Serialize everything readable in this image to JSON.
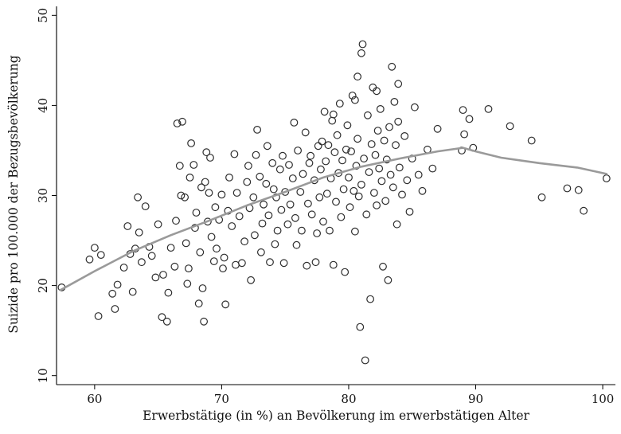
{
  "chart_data": {
    "type": "scatter",
    "title": "",
    "xlabel": "Erwerbstätige (in %) an Bevölkerung im erwerbstätigen Alter",
    "ylabel": "Suizide pro 100.000 der Bezugsbevölkerung",
    "xlim": [
      57,
      101
    ],
    "ylim": [
      9,
      51
    ],
    "x_ticks": [
      "60",
      "70",
      "80",
      "90",
      "100"
    ],
    "y_ticks": [
      "10",
      "20",
      "30",
      "40",
      "50"
    ],
    "x_tick_values": [
      60,
      70,
      80,
      90,
      100
    ],
    "y_tick_values": [
      10,
      20,
      30,
      40,
      50
    ],
    "grid": false,
    "marker": "hollow-circle",
    "colors": {
      "points": "#2d2d2d",
      "smooth_line": "#9a9a9a",
      "axes": "#000000"
    },
    "series": [
      {
        "type": "scatter",
        "points": [
          [
            57.4,
            19.8
          ],
          [
            59.6,
            22.9
          ],
          [
            60.0,
            24.2
          ],
          [
            60.3,
            16.6
          ],
          [
            60.5,
            23.4
          ],
          [
            61.4,
            19.1
          ],
          [
            61.6,
            17.4
          ],
          [
            61.8,
            20.1
          ],
          [
            62.3,
            22.0
          ],
          [
            62.6,
            26.6
          ],
          [
            62.8,
            23.5
          ],
          [
            63.0,
            19.3
          ],
          [
            63.2,
            24.1
          ],
          [
            63.4,
            29.8
          ],
          [
            63.5,
            25.9
          ],
          [
            63.7,
            22.6
          ],
          [
            64.0,
            28.8
          ],
          [
            64.3,
            24.3
          ],
          [
            64.5,
            23.3
          ],
          [
            64.8,
            20.9
          ],
          [
            65.0,
            26.8
          ],
          [
            65.3,
            16.5
          ],
          [
            65.4,
            21.2
          ],
          [
            65.7,
            16.0
          ],
          [
            65.8,
            19.2
          ],
          [
            66.0,
            24.2
          ],
          [
            66.3,
            22.1
          ],
          [
            66.4,
            27.2
          ],
          [
            66.5,
            38.0
          ],
          [
            66.7,
            33.3
          ],
          [
            66.8,
            30.0
          ],
          [
            66.9,
            38.2
          ],
          [
            67.1,
            29.8
          ],
          [
            67.2,
            24.7
          ],
          [
            67.3,
            20.2
          ],
          [
            67.4,
            21.9
          ],
          [
            67.5,
            32.0
          ],
          [
            67.6,
            35.8
          ],
          [
            67.8,
            33.4
          ],
          [
            67.9,
            26.4
          ],
          [
            68.0,
            28.1
          ],
          [
            68.2,
            18.0
          ],
          [
            68.3,
            23.7
          ],
          [
            68.4,
            30.9
          ],
          [
            68.5,
            19.7
          ],
          [
            68.6,
            16.0
          ],
          [
            68.7,
            31.5
          ],
          [
            68.8,
            34.8
          ],
          [
            68.9,
            27.1
          ],
          [
            69.0,
            30.3
          ],
          [
            69.1,
            34.2
          ],
          [
            69.2,
            25.4
          ],
          [
            69.4,
            22.7
          ],
          [
            69.5,
            28.7
          ],
          [
            69.6,
            24.1
          ],
          [
            69.8,
            27.3
          ],
          [
            70.0,
            30.1
          ],
          [
            70.1,
            21.9
          ],
          [
            70.2,
            23.1
          ],
          [
            70.3,
            17.9
          ],
          [
            70.5,
            28.3
          ],
          [
            70.6,
            32.0
          ],
          [
            70.8,
            26.6
          ],
          [
            71.0,
            34.6
          ],
          [
            71.1,
            22.3
          ],
          [
            71.2,
            30.3
          ],
          [
            71.4,
            27.7
          ],
          [
            71.6,
            22.5
          ],
          [
            71.8,
            24.9
          ],
          [
            72.0,
            31.5
          ],
          [
            72.1,
            33.3
          ],
          [
            72.2,
            28.6
          ],
          [
            72.3,
            20.6
          ],
          [
            72.5,
            29.8
          ],
          [
            72.6,
            25.6
          ],
          [
            72.7,
            34.5
          ],
          [
            72.8,
            37.3
          ],
          [
            73.0,
            32.1
          ],
          [
            73.1,
            23.7
          ],
          [
            73.2,
            26.9
          ],
          [
            73.3,
            29.0
          ],
          [
            73.5,
            31.3
          ],
          [
            73.6,
            35.5
          ],
          [
            73.7,
            27.8
          ],
          [
            73.8,
            22.6
          ],
          [
            74.0,
            33.6
          ],
          [
            74.1,
            30.7
          ],
          [
            74.2,
            24.6
          ],
          [
            74.3,
            29.8
          ],
          [
            74.4,
            26.1
          ],
          [
            74.6,
            32.9
          ],
          [
            74.7,
            28.4
          ],
          [
            74.8,
            34.4
          ],
          [
            74.9,
            22.5
          ],
          [
            75.0,
            30.4
          ],
          [
            75.2,
            26.8
          ],
          [
            75.3,
            33.4
          ],
          [
            75.4,
            29.0
          ],
          [
            75.6,
            31.9
          ],
          [
            75.7,
            38.1
          ],
          [
            75.8,
            27.5
          ],
          [
            75.9,
            24.5
          ],
          [
            76.0,
            35.0
          ],
          [
            76.2,
            30.4
          ],
          [
            76.3,
            26.1
          ],
          [
            76.4,
            32.4
          ],
          [
            76.6,
            37.0
          ],
          [
            76.7,
            22.2
          ],
          [
            76.8,
            29.1
          ],
          [
            76.9,
            33.6
          ],
          [
            77.0,
            34.4
          ],
          [
            77.1,
            27.9
          ],
          [
            77.3,
            31.7
          ],
          [
            77.4,
            22.6
          ],
          [
            77.5,
            25.8
          ],
          [
            77.6,
            35.5
          ],
          [
            77.7,
            29.8
          ],
          [
            77.8,
            32.9
          ],
          [
            77.9,
            36.0
          ],
          [
            78.0,
            27.1
          ],
          [
            78.1,
            39.3
          ],
          [
            78.2,
            33.8
          ],
          [
            78.3,
            30.2
          ],
          [
            78.4,
            35.6
          ],
          [
            78.5,
            26.1
          ],
          [
            78.6,
            31.9
          ],
          [
            78.7,
            38.3
          ],
          [
            78.8,
            22.3
          ],
          [
            78.9,
            34.8
          ],
          [
            79.0,
            29.3
          ],
          [
            79.1,
            36.7
          ],
          [
            79.2,
            32.5
          ],
          [
            79.3,
            40.2
          ],
          [
            79.4,
            27.6
          ],
          [
            79.5,
            33.9
          ],
          [
            79.6,
            30.7
          ],
          [
            79.7,
            21.5
          ],
          [
            79.8,
            35.1
          ],
          [
            79.9,
            37.8
          ],
          [
            80.0,
            32.0
          ],
          [
            80.1,
            28.7
          ],
          [
            80.2,
            34.9
          ],
          [
            80.3,
            41.1
          ],
          [
            80.4,
            30.5
          ],
          [
            80.5,
            26.0
          ],
          [
            80.6,
            33.3
          ],
          [
            80.7,
            36.3
          ],
          [
            80.8,
            29.9
          ],
          [
            80.9,
            15.4
          ],
          [
            81.0,
            31.2
          ],
          [
            81.1,
            46.8
          ],
          [
            81.2,
            34.1
          ],
          [
            81.3,
            11.7
          ],
          [
            81.4,
            27.9
          ],
          [
            81.5,
            38.9
          ],
          [
            81.6,
            32.6
          ],
          [
            81.7,
            18.5
          ],
          [
            81.8,
            35.7
          ],
          [
            81.9,
            42.0
          ],
          [
            82.0,
            30.3
          ],
          [
            82.1,
            34.5
          ],
          [
            82.2,
            28.9
          ],
          [
            82.3,
            37.2
          ],
          [
            82.4,
            33.0
          ],
          [
            82.5,
            39.6
          ],
          [
            82.6,
            31.6
          ],
          [
            82.7,
            22.1
          ],
          [
            82.8,
            36.1
          ],
          [
            82.9,
            29.4
          ],
          [
            83.0,
            34.0
          ],
          [
            83.1,
            20.6
          ],
          [
            83.2,
            37.6
          ],
          [
            83.3,
            32.3
          ],
          [
            83.4,
            44.3
          ],
          [
            83.5,
            30.9
          ],
          [
            83.6,
            40.4
          ],
          [
            83.7,
            35.6
          ],
          [
            83.8,
            26.8
          ],
          [
            83.9,
            38.2
          ],
          [
            84.0,
            33.1
          ],
          [
            84.2,
            30.1
          ],
          [
            84.4,
            36.6
          ],
          [
            84.6,
            31.7
          ],
          [
            84.8,
            28.2
          ],
          [
            85.0,
            34.1
          ],
          [
            85.2,
            39.8
          ],
          [
            85.5,
            32.3
          ],
          [
            85.8,
            30.5
          ],
          [
            86.2,
            35.1
          ],
          [
            86.6,
            33.0
          ],
          [
            87.0,
            37.4
          ],
          [
            88.9,
            35.0
          ],
          [
            89.0,
            39.5
          ],
          [
            89.1,
            36.8
          ],
          [
            89.5,
            38.5
          ],
          [
            89.8,
            35.3
          ],
          [
            91.0,
            39.6
          ],
          [
            92.7,
            37.7
          ],
          [
            94.4,
            36.1
          ],
          [
            95.2,
            29.8
          ],
          [
            97.2,
            30.8
          ],
          [
            98.1,
            30.6
          ],
          [
            98.5,
            28.3
          ],
          [
            100.3,
            31.9
          ],
          [
            80.7,
            43.2
          ],
          [
            81.0,
            45.8
          ],
          [
            83.9,
            42.4
          ],
          [
            82.2,
            41.6
          ],
          [
            78.8,
            39.0
          ],
          [
            80.5,
            40.6
          ]
        ]
      },
      {
        "type": "line",
        "smooth": true,
        "points": [
          [
            57.3,
            19.5
          ],
          [
            60,
            21.6
          ],
          [
            63,
            23.8
          ],
          [
            66,
            25.6
          ],
          [
            69,
            27.2
          ],
          [
            72,
            28.9
          ],
          [
            75,
            30.4
          ],
          [
            78,
            32.0
          ],
          [
            81,
            33.2
          ],
          [
            84,
            34.1
          ],
          [
            87,
            34.9
          ],
          [
            89,
            35.3
          ],
          [
            90,
            34.9
          ],
          [
            92,
            34.2
          ],
          [
            95,
            33.6
          ],
          [
            98,
            33.1
          ],
          [
            100.3,
            32.4
          ]
        ]
      }
    ]
  }
}
